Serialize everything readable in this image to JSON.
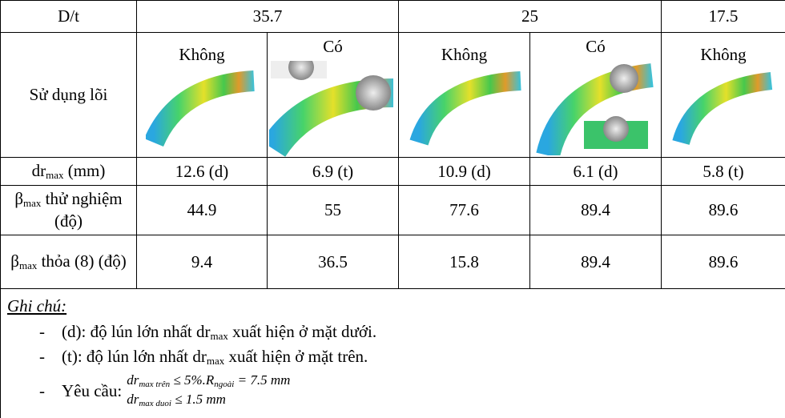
{
  "table": {
    "header": [
      "D/t",
      "35.7",
      "25",
      "17.5"
    ],
    "core_row": {
      "label": "Sử dụng lõi",
      "cells": [
        "Không",
        "Có",
        "Không",
        "Có",
        "Không"
      ]
    },
    "rows": [
      {
        "label": {
          "main": "dr",
          "sub": "max",
          "rest": " (mm)"
        },
        "cells": [
          "12.6 (d)",
          "6.9 (t)",
          "10.9 (d)",
          "6.1 (d)",
          "5.8 (t)"
        ]
      },
      {
        "label": {
          "main": "β",
          "sub": "max",
          "rest": " thử nghiệm (độ)"
        },
        "cells": [
          "44.9",
          "55",
          "77.6",
          "89.4",
          "89.6"
        ]
      },
      {
        "label": {
          "main": "β",
          "sub": "max",
          "rest": " thỏa (8) (độ)"
        },
        "cells": [
          "9.4",
          "36.5",
          "15.8",
          "89.4",
          "89.6"
        ]
      }
    ]
  },
  "notes": {
    "title": "Ghi chú:",
    "items": [
      {
        "bullet": "-",
        "text": "(d): độ lún lớn nhất dr",
        "sub": "max",
        "rest": " xuất hiện ở mặt dưới."
      },
      {
        "bullet": "-",
        "text": "(t): độ lún lớn nhất dr",
        "sub": "max",
        "rest": " xuất hiện ở mặt trên."
      }
    ],
    "requirement": {
      "bullet": "-",
      "label": "Yêu cầu:",
      "formula1": {
        "main": "dr",
        "sub": "max trên",
        "rel": " ≤ 5%.R",
        "sub2": "ngoài",
        "rest": " = 7.5 mm"
      },
      "formula2": {
        "main": "dr",
        "sub": "max duoi",
        "rest": " ≤ 1.5 mm"
      }
    }
  }
}
